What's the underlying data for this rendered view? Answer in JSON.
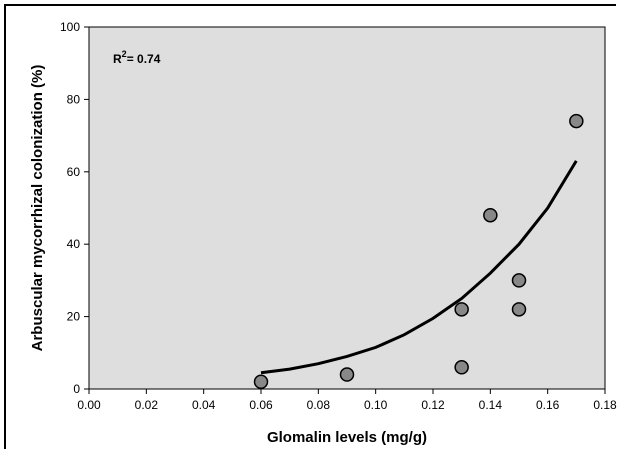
{
  "chart_data": {
    "type": "scatter",
    "xlabel": "Glomalin levels (mg/g)",
    "ylabel": "Arbuscular mycorrhizal colonization (%)",
    "xlim": [
      0.0,
      0.18
    ],
    "ylim": [
      0,
      100
    ],
    "x_ticks": [
      "0.00",
      "0.02",
      "0.04",
      "0.06",
      "0.08",
      "0.10",
      "0.12",
      "0.14",
      "0.16",
      "0.18"
    ],
    "x_tick_values": [
      0.0,
      0.02,
      0.04,
      0.06,
      0.08,
      0.1,
      0.12,
      0.14,
      0.16,
      0.18
    ],
    "y_ticks": [
      "0",
      "20",
      "40",
      "60",
      "80",
      "100"
    ],
    "y_tick_values": [
      0,
      20,
      40,
      60,
      80,
      100
    ],
    "points": [
      {
        "x": 0.06,
        "y": 2
      },
      {
        "x": 0.09,
        "y": 4
      },
      {
        "x": 0.13,
        "y": 22
      },
      {
        "x": 0.13,
        "y": 6
      },
      {
        "x": 0.14,
        "y": 48
      },
      {
        "x": 0.15,
        "y": 30
      },
      {
        "x": 0.15,
        "y": 22
      },
      {
        "x": 0.17,
        "y": 74
      }
    ],
    "fit_curve": {
      "type": "exponential",
      "x": [
        0.06,
        0.07,
        0.08,
        0.09,
        0.1,
        0.11,
        0.12,
        0.13,
        0.14,
        0.15,
        0.16,
        0.17
      ],
      "y": [
        4.5,
        5.5,
        7.0,
        9.0,
        11.5,
        15,
        19.5,
        25,
        32,
        40,
        50,
        63
      ]
    },
    "annotation": {
      "base": "R",
      "superscript": "2",
      "text": "= 0.74"
    },
    "grid": false,
    "plot_background": "#dedede",
    "point_fill": "#888888",
    "line_color": "#000000"
  }
}
